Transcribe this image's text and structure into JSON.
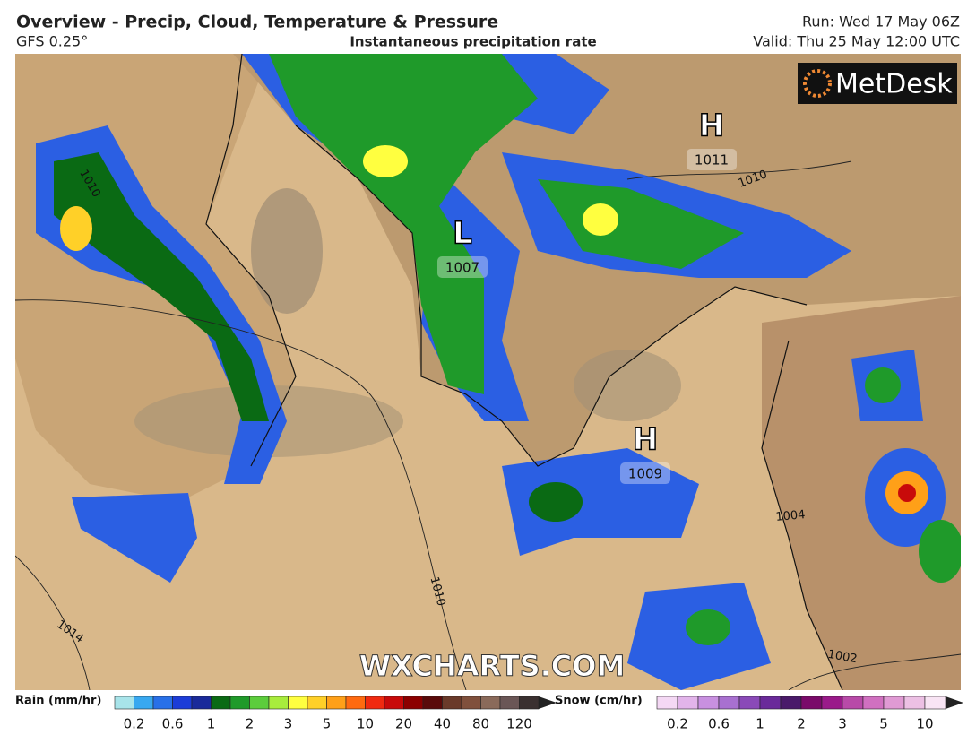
{
  "header": {
    "title": "Overview - Precip, Cloud, Temperature & Pressure",
    "model": "GFS 0.25°",
    "subtitle": "Instantaneous precipitation rate",
    "run": "Run: Wed 17 May 06Z",
    "valid": "Valid: Thu 25 May 12:00 UTC"
  },
  "brand": "MetDesk",
  "watermark": "WXCHARTS.COM",
  "pressure_centres": [
    {
      "symbol": "H",
      "value": 1011
    },
    {
      "symbol": "L",
      "value": 1007
    },
    {
      "symbol": "H",
      "value": 1009
    }
  ],
  "isobar_labels": [
    1010,
    1010,
    1010,
    1014,
    1002,
    1004
  ],
  "rain_legend": {
    "label": "Rain (mm/hr)",
    "ticks": [
      0.2,
      0.6,
      1,
      2,
      3,
      5,
      10,
      20,
      40,
      80,
      120
    ],
    "colors": [
      "#a8e4ea",
      "#38a8f0",
      "#2870e8",
      "#1c3cd8",
      "#1a2a9a",
      "#0a6a14",
      "#1f9a2a",
      "#5ccd3c",
      "#a8ec3c",
      "#ffff40",
      "#ffd028",
      "#ffa018",
      "#ff6a10",
      "#f02a10",
      "#c80a0a",
      "#8c0000",
      "#5a0a0a",
      "#6a3a2a",
      "#80503c",
      "#8a6a5a",
      "#6a5656",
      "#3a3030"
    ]
  },
  "snow_legend": {
    "label": "Snow (cm/hr)",
    "ticks": [
      0.2,
      0.6,
      1,
      2,
      3,
      5,
      10
    ],
    "colors": [
      "#f4d8f4",
      "#e2b4ea",
      "#c890e0",
      "#a870d0",
      "#8a4ab8",
      "#6a2a9a",
      "#4a1a6a",
      "#7a0a6a",
      "#9a1a8a",
      "#b84aa8",
      "#d070c0",
      "#e09ad4",
      "#ecc0e4",
      "#f8e4f4"
    ]
  }
}
